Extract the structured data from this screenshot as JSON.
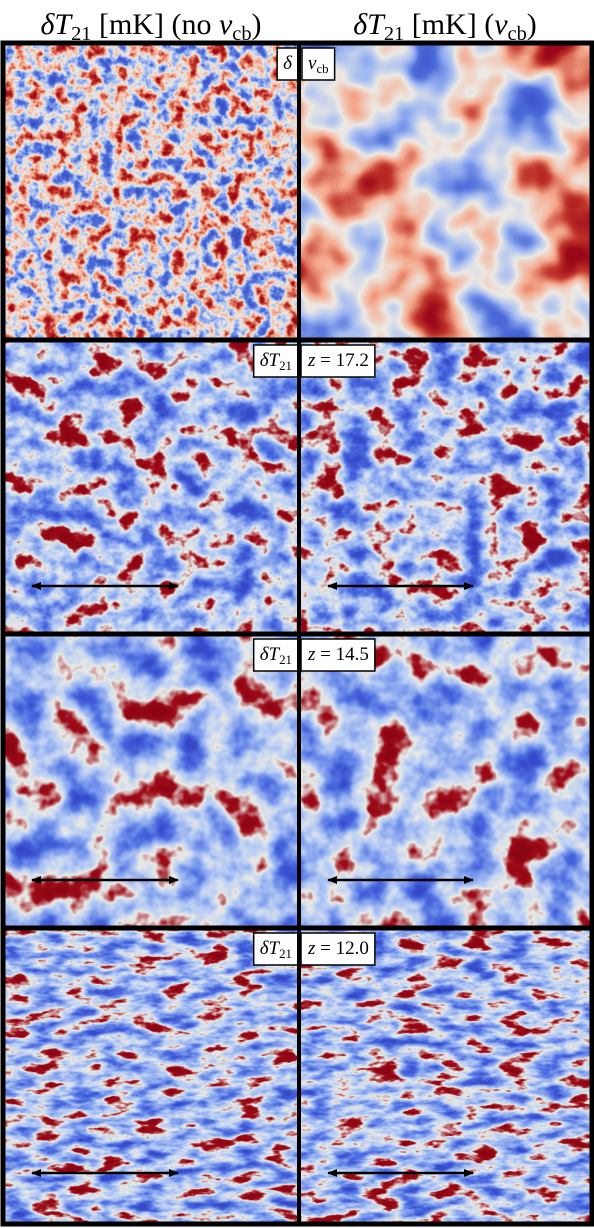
{
  "headers": [
    [
      {
        "t": "δT",
        "i": true
      },
      {
        "t": "21",
        "sub": true
      },
      {
        "t": " [mK] (no "
      },
      {
        "t": "v",
        "i": true
      },
      {
        "t": "cb",
        "sub": true
      },
      {
        "t": ")"
      }
    ],
    [
      {
        "t": "δT",
        "i": true
      },
      {
        "t": "21",
        "sub": true
      },
      {
        "t": " [mK] ("
      },
      {
        "t": "v",
        "i": true
      },
      {
        "t": "cb",
        "sub": true
      },
      {
        "t": ")"
      }
    ]
  ],
  "panels": [
    {
      "left_label": [
        {
          "t": "δ",
          "i": true
        }
      ],
      "right_label": [
        {
          "t": "v",
          "i": true
        },
        {
          "t": "cb",
          "sub": true
        }
      ]
    },
    {
      "left_label": [
        {
          "t": "δT",
          "i": true
        },
        {
          "t": "21",
          "sub": true
        }
      ],
      "right_label": [
        {
          "t": "z",
          "i": true
        },
        {
          "t": " = 17.2"
        }
      ]
    },
    {
      "left_label": [
        {
          "t": "δT",
          "i": true
        },
        {
          "t": "21",
          "sub": true
        }
      ],
      "right_label": [
        {
          "t": "z",
          "i": true
        },
        {
          "t": " = 14.5"
        }
      ]
    },
    {
      "left_label": [
        {
          "t": "δT",
          "i": true
        },
        {
          "t": "21",
          "sub": true
        }
      ],
      "right_label": [
        {
          "t": "z",
          "i": true
        },
        {
          "t": " = 12.0"
        }
      ]
    }
  ]
}
